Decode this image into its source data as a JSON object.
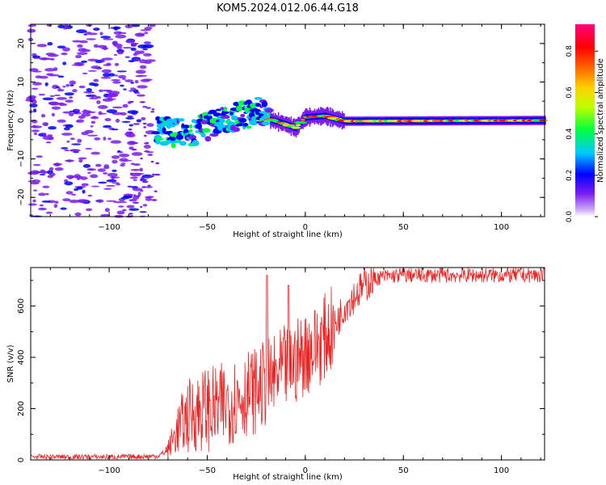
{
  "figure": {
    "title": "KOM5.2024.012.06.44.G18"
  },
  "chart_data": [
    {
      "type": "heatmap",
      "xlabel": "Height of straight line (km)",
      "ylabel": "Frequency (Hz)",
      "xlim": [
        -140,
        122
      ],
      "ylim": [
        -25,
        25
      ],
      "xticks": [
        -100,
        -50,
        0,
        50,
        100
      ],
      "yticks": [
        -20,
        -10,
        0,
        10,
        20
      ],
      "colorbar": {
        "label": "Normalized spectral amplitude",
        "range": [
          0,
          0.93
        ],
        "ticks": [
          0.0,
          0.2,
          0.4,
          0.6,
          0.8
        ]
      },
      "ridge": {
        "description_points": [
          {
            "x": -75,
            "f": -2.5
          },
          {
            "x": -60,
            "f": -3.5
          },
          {
            "x": -50,
            "f": -1.5
          },
          {
            "x": -35,
            "f": 1.0
          },
          {
            "x": -22,
            "f": 2.5
          },
          {
            "x": -18,
            "f": 0.2
          },
          {
            "x": -10,
            "f": -1.0
          },
          {
            "x": -5,
            "f": -2.0
          },
          {
            "x": 0,
            "f": 0.8
          },
          {
            "x": 10,
            "f": 1.2
          },
          {
            "x": 20,
            "f": -0.2
          },
          {
            "x": 122,
            "f": 0.0
          }
        ]
      }
    },
    {
      "type": "line",
      "xlabel": "Height of straight line (km)",
      "ylabel": "SNR (v/v)",
      "xlim": [
        -140,
        122
      ],
      "ylim": [
        0,
        750
      ],
      "xticks": [
        -100,
        -50,
        0,
        50,
        100
      ],
      "yticks": [
        0,
        200,
        400,
        600
      ],
      "series": [
        {
          "color": "#ee2222",
          "x": [
            -140,
            -120,
            -100,
            -85,
            -75,
            -70,
            -65,
            -60,
            -55,
            -50,
            -45,
            -40,
            -35,
            -30,
            -25,
            -20,
            -15,
            -10,
            -5,
            0,
            5,
            10,
            15,
            20,
            25,
            30,
            35,
            40,
            50,
            60,
            70,
            80,
            90,
            100,
            110,
            122
          ],
          "y": [
            12,
            12,
            12,
            13,
            15,
            40,
            120,
            170,
            190,
            200,
            200,
            220,
            240,
            260,
            270,
            300,
            320,
            360,
            380,
            420,
            440,
            480,
            520,
            600,
            640,
            680,
            705,
            715,
            720,
            720,
            720,
            720,
            720,
            720,
            720,
            720
          ]
        }
      ],
      "spikes": [
        {
          "x": -19.5,
          "y": 720
        },
        {
          "x": -8.5,
          "y": 680
        }
      ]
    }
  ]
}
